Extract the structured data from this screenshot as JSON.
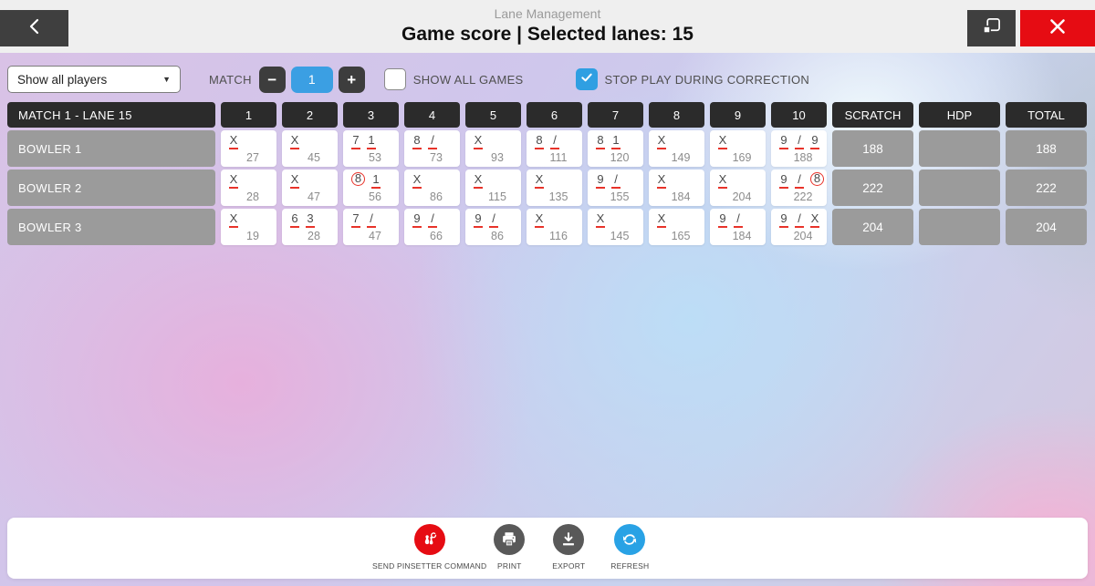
{
  "header": {
    "app_title": "Lane Management",
    "page_title": "Game score | Selected lanes: 15"
  },
  "toolbar": {
    "player_filter_value": "Show all players",
    "match_label": "MATCH",
    "match_value": "1",
    "minus_label": "−",
    "plus_label": "+",
    "show_all_games_label": "SHOW ALL GAMES",
    "show_all_games_checked": false,
    "stop_play_label": "STOP PLAY DURING CORRECTION",
    "stop_play_checked": true
  },
  "scoreboard": {
    "corner_label": "MATCH 1 - LANE 15",
    "frame_headers": [
      "1",
      "2",
      "3",
      "4",
      "5",
      "6",
      "7",
      "8",
      "9",
      "10"
    ],
    "extra_headers": [
      "SCRATCH",
      "HDP",
      "TOTAL"
    ],
    "bowlers": [
      {
        "name": "BOWLER 1",
        "frames": [
          {
            "throws": [
              "X"
            ],
            "cum": "27"
          },
          {
            "throws": [
              "X"
            ],
            "cum": "45"
          },
          {
            "throws": [
              "7",
              "1"
            ],
            "cum": "53"
          },
          {
            "throws": [
              "8",
              "/"
            ],
            "cum": "73"
          },
          {
            "throws": [
              "X"
            ],
            "cum": "93"
          },
          {
            "throws": [
              "8",
              "/"
            ],
            "cum": "111"
          },
          {
            "throws": [
              "8",
              "1"
            ],
            "cum": "120"
          },
          {
            "throws": [
              "X"
            ],
            "cum": "149"
          },
          {
            "throws": [
              "X"
            ],
            "cum": "169"
          },
          {
            "throws": [
              "9",
              "/",
              "9"
            ],
            "cum": "188"
          }
        ],
        "scratch": "188",
        "hdp": "",
        "total": "188"
      },
      {
        "name": "BOWLER 2",
        "frames": [
          {
            "throws": [
              "X"
            ],
            "cum": "28"
          },
          {
            "throws": [
              "X"
            ],
            "cum": "47"
          },
          {
            "throws": [
              "8",
              "1"
            ],
            "circled": [
              0
            ],
            "cum": "56"
          },
          {
            "throws": [
              "X"
            ],
            "cum": "86"
          },
          {
            "throws": [
              "X"
            ],
            "cum": "115"
          },
          {
            "throws": [
              "X"
            ],
            "cum": "135"
          },
          {
            "throws": [
              "9",
              "/"
            ],
            "cum": "155"
          },
          {
            "throws": [
              "X"
            ],
            "cum": "184"
          },
          {
            "throws": [
              "X"
            ],
            "cum": "204"
          },
          {
            "throws": [
              "9",
              "/",
              "8"
            ],
            "circled": [
              2
            ],
            "cum": "222"
          }
        ],
        "scratch": "222",
        "hdp": "",
        "total": "222"
      },
      {
        "name": "BOWLER 3",
        "frames": [
          {
            "throws": [
              "X"
            ],
            "cum": "19"
          },
          {
            "throws": [
              "6",
              "3"
            ],
            "cum": "28"
          },
          {
            "throws": [
              "7",
              "/"
            ],
            "cum": "47"
          },
          {
            "throws": [
              "9",
              "/"
            ],
            "cum": "66"
          },
          {
            "throws": [
              "9",
              "/"
            ],
            "cum": "86"
          },
          {
            "throws": [
              "X"
            ],
            "cum": "116"
          },
          {
            "throws": [
              "X"
            ],
            "cum": "145"
          },
          {
            "throws": [
              "X"
            ],
            "cum": "165"
          },
          {
            "throws": [
              "9",
              "/"
            ],
            "cum": "184"
          },
          {
            "throws": [
              "9",
              "/",
              "X"
            ],
            "cum": "204"
          }
        ],
        "scratch": "204",
        "hdp": "",
        "total": "204"
      }
    ]
  },
  "actions": [
    {
      "name": "send-pinsetter-command-button",
      "label": "SEND PINSETTER COMMAND",
      "icon": "pinsetter-icon",
      "color": "#e60c13"
    },
    {
      "name": "print-button",
      "label": "PRINT",
      "icon": "printer-icon",
      "color": "#595959"
    },
    {
      "name": "export-button",
      "label": "EXPORT",
      "icon": "download-icon",
      "color": "#595959"
    },
    {
      "name": "refresh-button",
      "label": "REFRESH",
      "icon": "refresh-icon",
      "color": "#29a2e5"
    }
  ],
  "colors": {
    "accent_blue": "#2f9fe2",
    "stepper_blue": "#3b9fe3",
    "danger_red": "#e60c13",
    "score_mark_red": "#e8332a",
    "cell_gray": "#9b9b9b",
    "header_dark": "#2b2b2b"
  }
}
